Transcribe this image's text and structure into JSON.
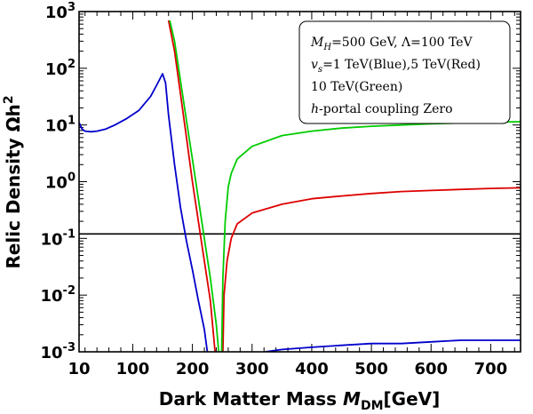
{
  "chart_data": {
    "type": "line",
    "title": "",
    "xlabel": "Dark Matter Mass",
    "xlabel_symbol": "M",
    "xlabel_sub": "DM",
    "xlabel_unit": "[GeV]",
    "ylabel": "Relic Density Ωh",
    "ylabel_sup": "2",
    "xlim": [
      10,
      750
    ],
    "ylim": [
      0.001,
      1000
    ],
    "yscale": "log",
    "x_ticks": [
      {
        "value": 10,
        "label": "10"
      },
      {
        "value": 100,
        "label": "100"
      },
      {
        "value": 200,
        "label": "200"
      },
      {
        "value": 300,
        "label": "300"
      },
      {
        "value": 400,
        "label": "400"
      },
      {
        "value": 500,
        "label": "500"
      },
      {
        "value": 600,
        "label": "600"
      },
      {
        "value": 700,
        "label": "700"
      }
    ],
    "y_ticks": [
      {
        "value": 0.001,
        "base": "10",
        "exp": "-3"
      },
      {
        "value": 0.01,
        "base": "10",
        "exp": "-2"
      },
      {
        "value": 0.1,
        "base": "10",
        "exp": "-1"
      },
      {
        "value": 1,
        "base": "10",
        "exp": "0"
      },
      {
        "value": 10,
        "base": "10",
        "exp": "1"
      },
      {
        "value": 100,
        "base": "10",
        "exp": "2"
      },
      {
        "value": 1000,
        "base": "10",
        "exp": "3"
      }
    ],
    "reference_line": {
      "y": 0.12,
      "color": "#000000"
    },
    "legend_lines": [
      "M_H=500 GeV, Λ=100 TeV",
      "v_s=1 TeV(Blue),5 TeV(Red)",
      "10 TeV(Green)",
      "h-portal coupling Zero"
    ],
    "legend_position": "top-right",
    "series": [
      {
        "name": "v_s = 1 TeV",
        "color": "#0000cc",
        "segments": [
          [
            [
              10,
              11
            ],
            [
              15,
              8.5
            ],
            [
              20,
              7.8
            ],
            [
              30,
              7.6
            ],
            [
              40,
              7.8
            ],
            [
              55,
              8.5
            ],
            [
              70,
              10
            ],
            [
              90,
              13
            ],
            [
              110,
              18
            ],
            [
              130,
              32
            ],
            [
              140,
              50
            ],
            [
              150,
              80
            ],
            [
              155,
              55
            ],
            [
              160,
              15
            ],
            [
              170,
              2
            ],
            [
              180,
              0.35
            ],
            [
              190,
              0.09
            ],
            [
              200,
              0.028
            ],
            [
              210,
              0.008
            ],
            [
              220,
              0.0025
            ],
            [
              225,
              0.001
            ]
          ],
          [
            [
              322,
              0.001
            ],
            [
              350,
              0.0011
            ],
            [
              400,
              0.0012
            ],
            [
              450,
              0.0013
            ],
            [
              500,
              0.0014
            ],
            [
              550,
              0.0014
            ],
            [
              600,
              0.0015
            ],
            [
              650,
              0.0016
            ],
            [
              700,
              0.0016
            ],
            [
              750,
              0.0016
            ]
          ]
        ]
      },
      {
        "name": "v_s = 5 TeV",
        "color": "#dd0000",
        "segments": [
          [
            [
              160,
              700
            ],
            [
              170,
              200
            ],
            [
              180,
              35
            ],
            [
              190,
              6
            ],
            [
              200,
              1
            ],
            [
              210,
              0.2
            ],
            [
              220,
              0.04
            ],
            [
              230,
              0.008
            ],
            [
              238,
              0.001
            ]
          ],
          [
            [
              251,
              0.001
            ],
            [
              253,
              0.01
            ],
            [
              258,
              0.04
            ],
            [
              265,
              0.1
            ],
            [
              275,
              0.18
            ],
            [
              300,
              0.28
            ],
            [
              350,
              0.4
            ],
            [
              400,
              0.5
            ],
            [
              450,
              0.56
            ],
            [
              500,
              0.62
            ],
            [
              550,
              0.67
            ],
            [
              600,
              0.7
            ],
            [
              650,
              0.73
            ],
            [
              700,
              0.76
            ],
            [
              750,
              0.78
            ]
          ]
        ]
      },
      {
        "name": "v_s = 10 TeV",
        "color": "#00cc00",
        "segments": [
          [
            [
              162,
              700
            ],
            [
              170,
              300
            ],
            [
              180,
              60
            ],
            [
              190,
              12
            ],
            [
              200,
              2.5
            ],
            [
              210,
              0.5
            ],
            [
              220,
              0.1
            ],
            [
              230,
              0.02
            ],
            [
              240,
              0.003
            ],
            [
              244,
              0.001
            ]
          ],
          [
            [
              249,
              0.001
            ],
            [
              251,
              0.02
            ],
            [
              255,
              0.2
            ],
            [
              260,
              0.8
            ],
            [
              265,
              1.4
            ],
            [
              275,
              2.5
            ],
            [
              300,
              4.2
            ],
            [
              350,
              6.5
            ],
            [
              400,
              7.8
            ],
            [
              450,
              8.8
            ],
            [
              500,
              9.5
            ],
            [
              550,
              10
            ],
            [
              600,
              10.5
            ],
            [
              650,
              10.8
            ],
            [
              700,
              11.2
            ],
            [
              750,
              11.4
            ]
          ]
        ]
      }
    ]
  }
}
